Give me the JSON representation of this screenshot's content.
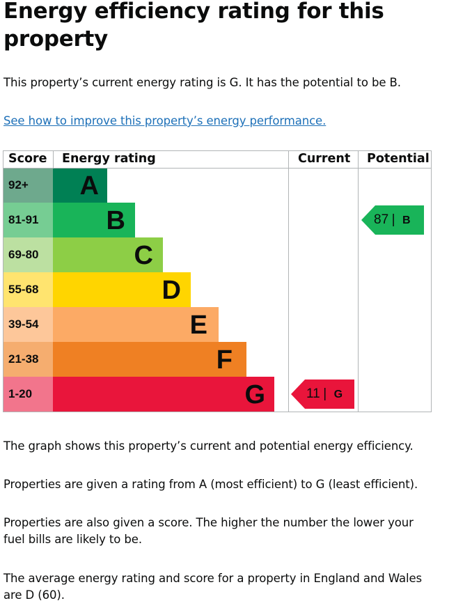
{
  "heading": "Energy efficiency rating for this property",
  "intro": "This property’s current energy rating is G. It has the potential to be B.",
  "improve_link": "See how to improve this property’s energy performance.",
  "chart": {
    "headers": {
      "score": "Score",
      "rating": "Energy rating",
      "current": "Current",
      "potential": "Potential"
    },
    "bands": [
      {
        "score": "92+",
        "letter": "A",
        "color": "#008054",
        "score_bg": "#6ea98d"
      },
      {
        "score": "81-91",
        "letter": "B",
        "color": "#19b459",
        "score_bg": "#76cd93"
      },
      {
        "score": "69-80",
        "letter": "C",
        "color": "#8dce46",
        "score_bg": "#bce0a1"
      },
      {
        "score": "55-68",
        "letter": "D",
        "color": "#ffd500",
        "score_bg": "#ffe46f"
      },
      {
        "score": "39-54",
        "letter": "E",
        "color": "#fcaa65",
        "score_bg": "#fdc79a"
      },
      {
        "score": "21-38",
        "letter": "F",
        "color": "#ef8023",
        "score_bg": "#f5ad6f"
      },
      {
        "score": "1-20",
        "letter": "G",
        "color": "#e9153b",
        "score_bg": "#f2758c"
      }
    ],
    "current": {
      "score": "11",
      "letter": "G",
      "band_index": 6,
      "color": "#e9153b"
    },
    "potential": {
      "score": "87",
      "letter": "B",
      "band_index": 1,
      "color": "#19b459"
    },
    "grid_color": "#b1b4b6"
  },
  "paragraphs": [
    "The graph shows this property’s current and potential energy efficiency.",
    "Properties are given a rating from A (most efficient) to G (least efficient).",
    "Properties are also given a score. The higher the number the lower your fuel bills are likely to be.",
    "The average energy rating and score for a property in England and Wales are D (60)."
  ]
}
